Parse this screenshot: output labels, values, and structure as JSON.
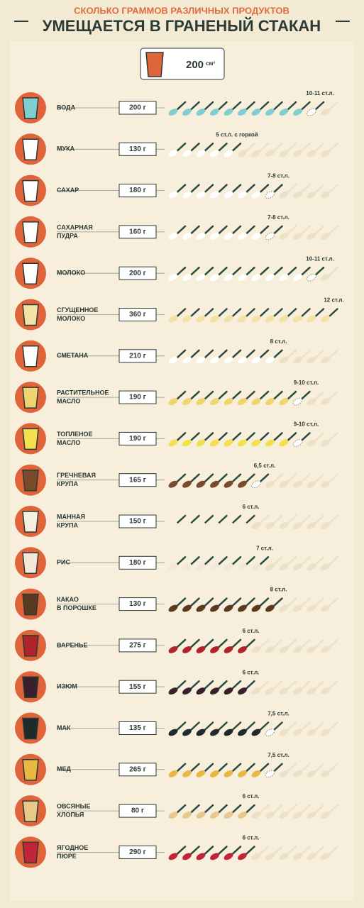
{
  "header": {
    "subtitle": "СКОЛЬКО ГРАММОВ РАЗЛИЧНЫХ ПРОДУКТОВ",
    "title": "УМЕЩАЕТСЯ В ГРАНЕНЫЙ СТАКАН",
    "volume": "200",
    "unit": "см³"
  },
  "rows": [
    {
      "name": [
        "ВОДА"
      ],
      "grams": "200 г",
      "spoons_label": "10-11 ст.л.",
      "spoons": 10.5,
      "color": "#7fcfd0"
    },
    {
      "name": [
        "МУКА"
      ],
      "grams": "130 г",
      "spoons_label": "5 ст.л. с горкой",
      "spoons": 5,
      "color": "#ffffff"
    },
    {
      "name": [
        "САХАР"
      ],
      "grams": "180 г",
      "spoons_label": "7-8 ст.л.",
      "spoons": 7.5,
      "color": "#ffffff"
    },
    {
      "name": [
        "САХАРНАЯ",
        "ПУДРА"
      ],
      "grams": "160 г",
      "spoons_label": "7-8 ст.л.",
      "spoons": 7.5,
      "color": "#ffffff"
    },
    {
      "name": [
        "МОЛОКО"
      ],
      "grams": "200 г",
      "spoons_label": "10-11 ст.л.",
      "spoons": 10.5,
      "color": "#ffffff"
    },
    {
      "name": [
        "СГУЩЕННОЕ",
        "МОЛОКО"
      ],
      "grams": "360 г",
      "spoons_label": "12 ст.л.",
      "spoons": 12,
      "color": "#f2e2a6"
    },
    {
      "name": [
        "СМЕТАНА"
      ],
      "grams": "210 г",
      "spoons_label": "8 ст.л.",
      "spoons": 8,
      "color": "#ffffff"
    },
    {
      "name": [
        "РАСТИТЕЛЬНОЕ",
        "МАСЛО"
      ],
      "grams": "190 г",
      "spoons_label": "9-10 ст.л.",
      "spoons": 9.5,
      "color": "#f0d56e"
    },
    {
      "name": [
        "ТОПЛЕНОЕ",
        "МАСЛО"
      ],
      "grams": "190 г",
      "spoons_label": "9-10 ст.л.",
      "spoons": 9.5,
      "color": "#f4e04c"
    },
    {
      "name": [
        "ГРЕЧНЕВАЯ",
        "КРУПА"
      ],
      "grams": "165 г",
      "spoons_label": "6,5 ст.л.",
      "spoons": 6.5,
      "color": "#7a4a2a"
    },
    {
      "name": [
        "МАННАЯ",
        "КРУПА"
      ],
      "grams": "150 г",
      "spoons_label": "6 ст.л.",
      "spoons": 6,
      "color": "#f4efe0"
    },
    {
      "name": [
        "РИС"
      ],
      "grams": "180 г",
      "spoons_label": "7 ст.л.",
      "spoons": 7,
      "color": "#f2e7d9"
    },
    {
      "name": [
        "КАКАО",
        "В ПОРОШКЕ"
      ],
      "grams": "130 г",
      "spoons_label": "8 ст.л.",
      "spoons": 8,
      "color": "#5b3a22"
    },
    {
      "name": [
        "ВАРЕНЬЕ"
      ],
      "grams": "275 г",
      "spoons_label": "6 ст.л.",
      "spoons": 6,
      "color": "#b0222c"
    },
    {
      "name": [
        "ИЗЮМ"
      ],
      "grams": "155 г",
      "spoons_label": "6 ст.л.",
      "spoons": 6,
      "color": "#3a1f2e"
    },
    {
      "name": [
        "МАК"
      ],
      "grams": "135 г",
      "spoons_label": "7,5 ст.л.",
      "spoons": 7.5,
      "color": "#1f2b2b"
    },
    {
      "name": [
        "МЕД"
      ],
      "grams": "265 г",
      "spoons_label": "7,5 ст.л.",
      "spoons": 7.5,
      "color": "#e8b840"
    },
    {
      "name": [
        "ОВСЯНЫЕ",
        "ХЛОПЬЯ"
      ],
      "grams": "80 г",
      "spoons_label": "6 ст.л.",
      "spoons": 6,
      "color": "#e9c98a"
    },
    {
      "name": [
        "ЯГОДНОЕ",
        "ПЮРЕ"
      ],
      "grams": "290 г",
      "spoons_label": "6 ст.л.",
      "spoons": 6,
      "color": "#c2243a"
    }
  ]
}
